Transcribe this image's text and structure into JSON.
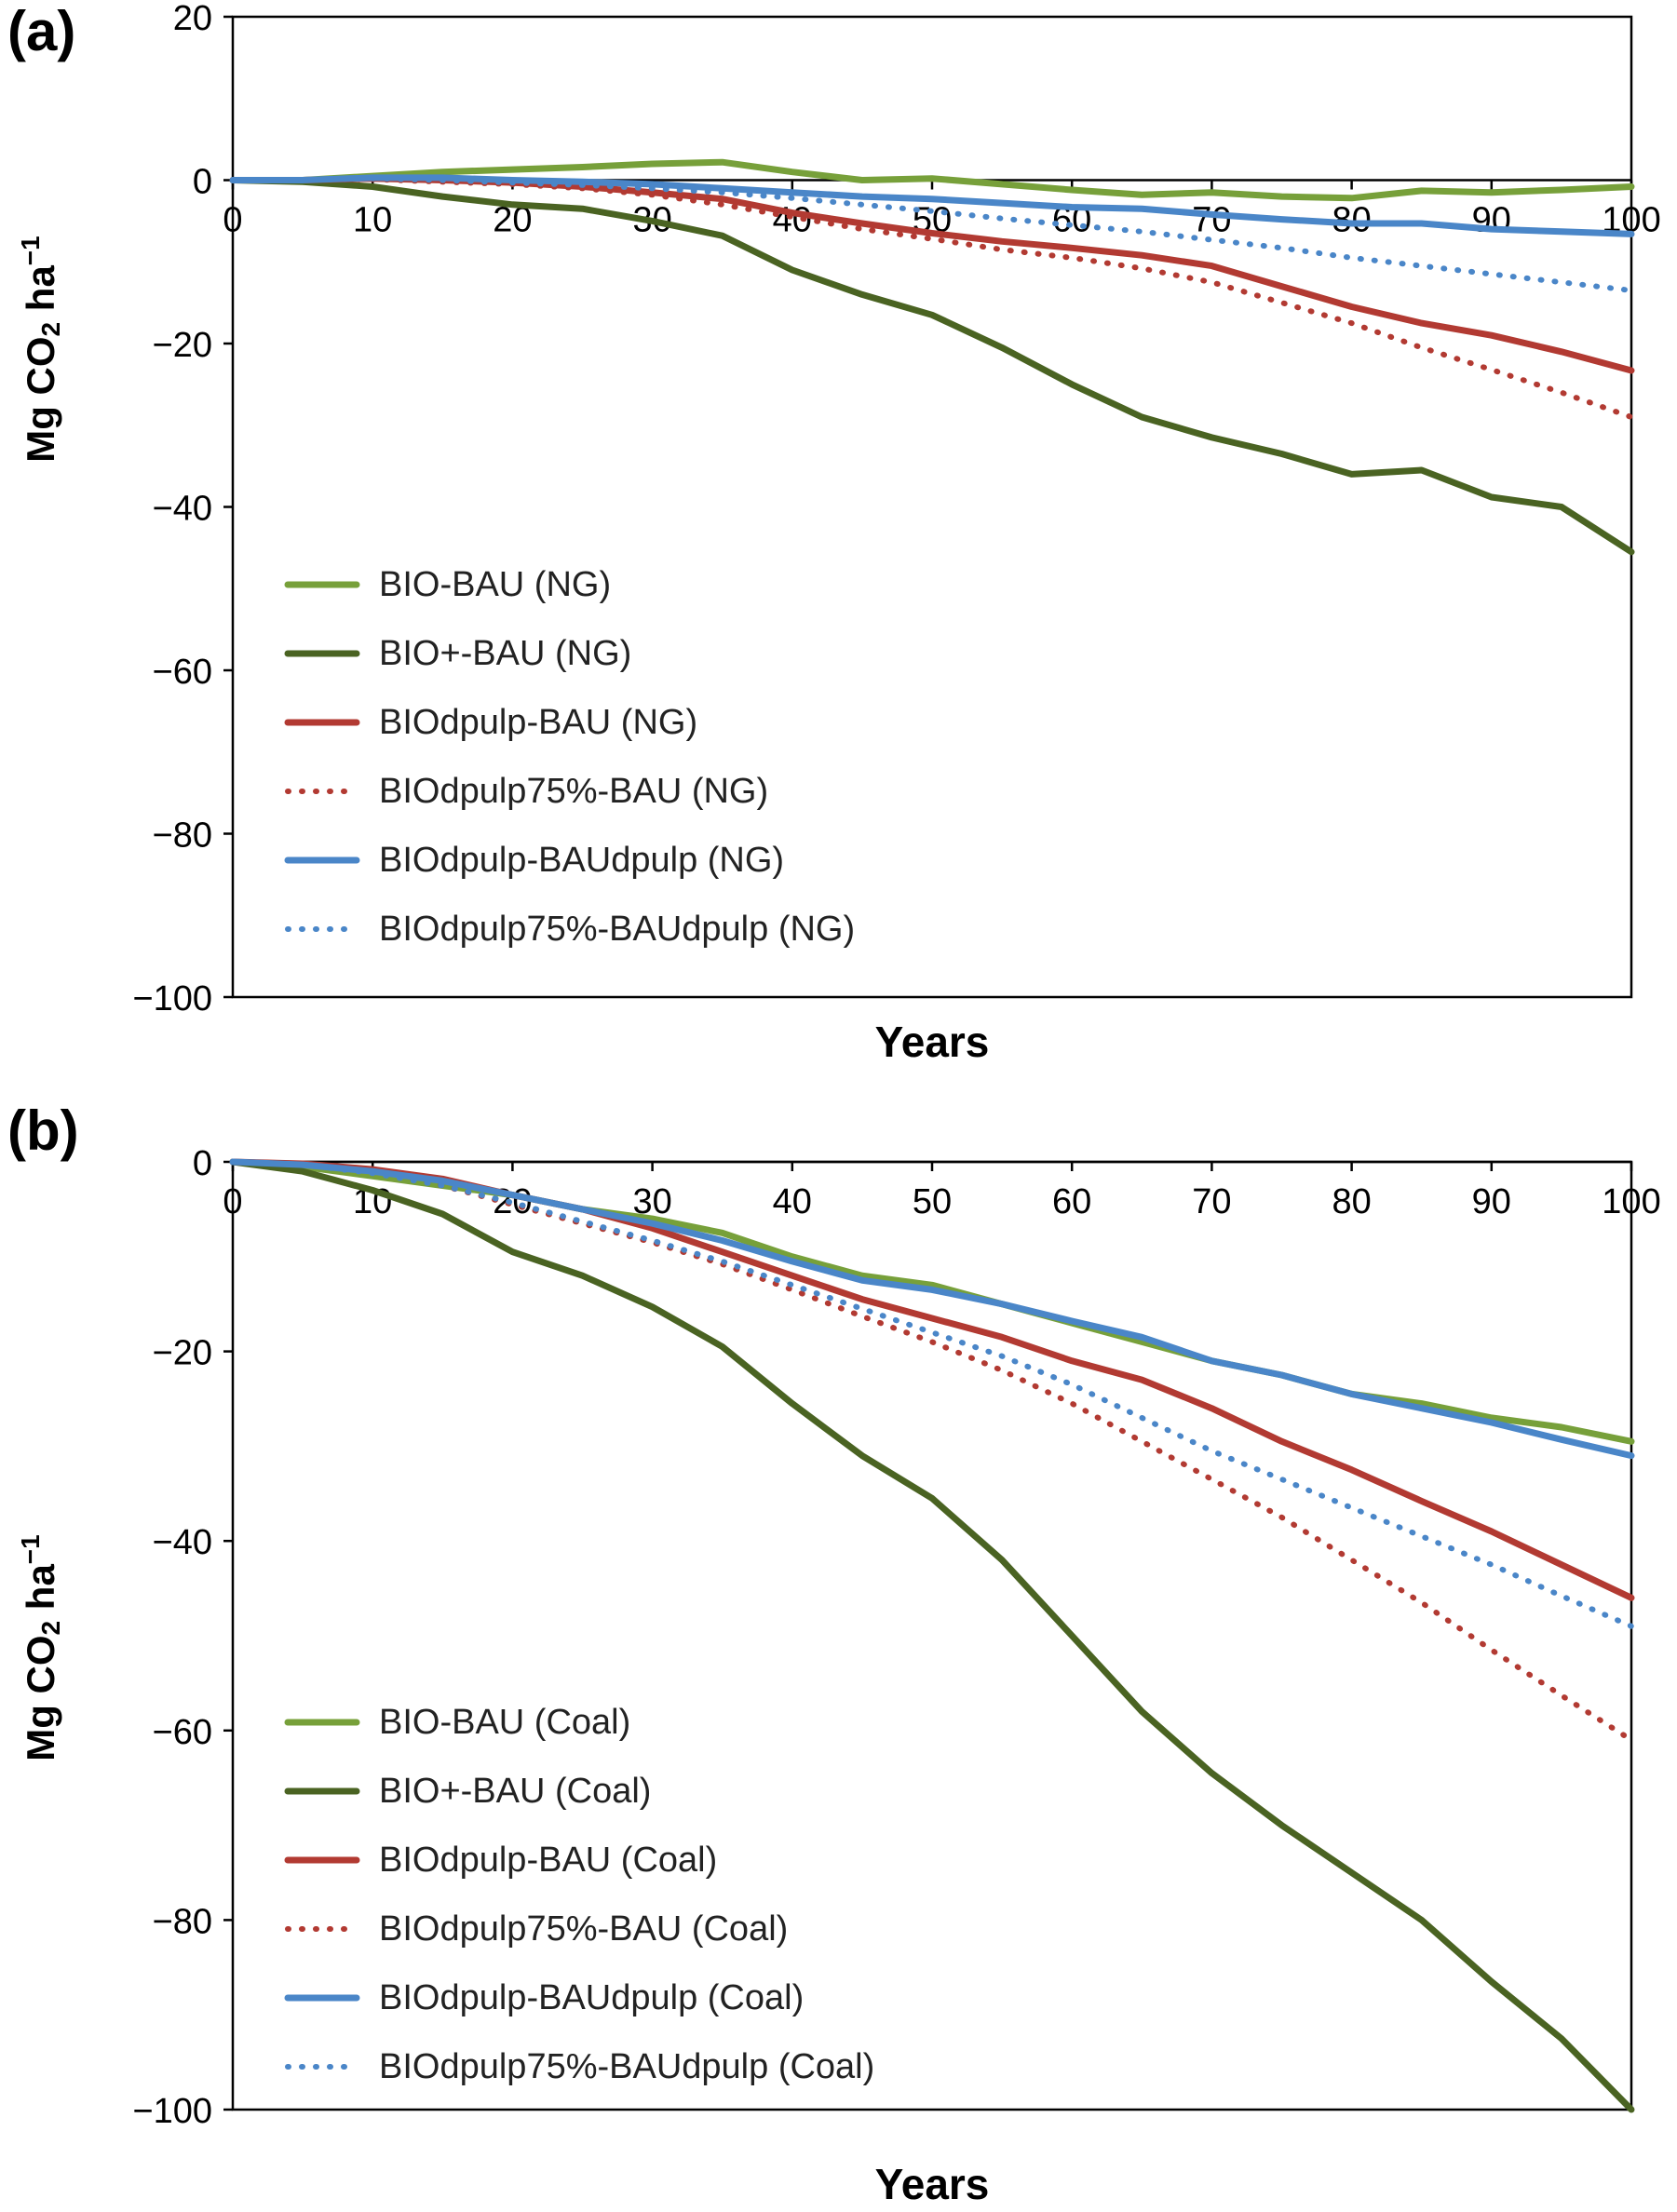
{
  "chart_data": [
    {
      "type": "line",
      "panel_label": "(a)",
      "xlabel": "Years",
      "ylabel_main": "Mg CO",
      "ylabel_sub": "2",
      "ylabel_unit": " ha",
      "ylabel_sup": "−1",
      "xlim": [
        0,
        100
      ],
      "ylim": [
        -100,
        20
      ],
      "x_ticks": [
        0,
        10,
        20,
        30,
        40,
        50,
        60,
        70,
        80,
        90,
        100
      ],
      "y_ticks": [
        20,
        0,
        -20,
        -40,
        -60,
        -80,
        -100
      ],
      "grid": false,
      "legend_position": "lower-left",
      "x": [
        0,
        5,
        10,
        15,
        20,
        25,
        30,
        35,
        40,
        45,
        50,
        55,
        60,
        65,
        70,
        75,
        80,
        85,
        90,
        95,
        100
      ],
      "series": [
        {
          "name": "BIO-BAU (NG)",
          "color": "#77a03a",
          "style": "solid",
          "values": [
            0,
            0,
            0.5,
            1,
            1.3,
            1.6,
            2,
            2.2,
            1,
            0,
            0.2,
            -0.5,
            -1.2,
            -1.8,
            -1.5,
            -2,
            -2.2,
            -1.3,
            -1.5,
            -1.2,
            -0.8
          ]
        },
        {
          "name": "BIO+-BAU (NG)",
          "color": "#4a6322",
          "style": "solid",
          "values": [
            0,
            -0.2,
            -0.8,
            -2,
            -3,
            -3.5,
            -5,
            -6.8,
            -11,
            -14,
            -16.5,
            -20.5,
            -25,
            -29,
            -31.5,
            -33.5,
            -36,
            -35.5,
            -38.8,
            -40,
            -45.5
          ]
        },
        {
          "name": "BIOdpulp-BAU (NG)",
          "color": "#b23a32",
          "style": "solid",
          "values": [
            0,
            0,
            0.2,
            0,
            -0.3,
            -0.8,
            -1.5,
            -2.3,
            -4,
            -5.3,
            -6.5,
            -7.5,
            -8.3,
            -9.2,
            -10.5,
            -13,
            -15.5,
            -17.5,
            -19,
            -21,
            -23.3
          ]
        },
        {
          "name": "BIOdpulp75%-BAU (NG)",
          "color": "#b23a32",
          "style": "dotted",
          "values": [
            0,
            0,
            0.1,
            -0.2,
            -0.5,
            -1,
            -1.8,
            -3,
            -4.5,
            -6,
            -7.2,
            -8.5,
            -9.5,
            -10.8,
            -12.5,
            -15,
            -17.5,
            -20.5,
            -23.2,
            -26,
            -29
          ]
        },
        {
          "name": "BIOdpulp-BAUdpulp (NG)",
          "color": "#4a86c8",
          "style": "solid",
          "values": [
            0,
            0,
            0.3,
            0.3,
            0,
            -0.2,
            -0.5,
            -1,
            -1.5,
            -2,
            -2.3,
            -2.8,
            -3.3,
            -3.5,
            -4.2,
            -4.8,
            -5.3,
            -5.3,
            -6,
            -6.3,
            -6.6
          ]
        },
        {
          "name": "BIOdpulp75%-BAUdpulp (NG)",
          "color": "#4a86c8",
          "style": "dotted",
          "values": [
            0,
            0,
            0.2,
            0,
            -0.3,
            -0.6,
            -1,
            -1.5,
            -2.2,
            -3,
            -3.8,
            -4.7,
            -5.5,
            -6.3,
            -7.3,
            -8.3,
            -9.5,
            -10.5,
            -11.5,
            -12.5,
            -13.5
          ]
        }
      ]
    },
    {
      "type": "line",
      "panel_label": "(b)",
      "xlabel": "Years",
      "ylabel_main": "Mg CO",
      "ylabel_sub": "2",
      "ylabel_unit": " ha",
      "ylabel_sup": "−1",
      "xlim": [
        0,
        100
      ],
      "ylim": [
        -100,
        0
      ],
      "x_ticks": [
        0,
        10,
        20,
        30,
        40,
        50,
        60,
        70,
        80,
        90,
        100
      ],
      "y_ticks": [
        0,
        -20,
        -40,
        -60,
        -80,
        -100
      ],
      "grid": false,
      "legend_position": "lower-left",
      "x": [
        0,
        5,
        10,
        15,
        20,
        25,
        30,
        35,
        40,
        45,
        50,
        55,
        60,
        65,
        70,
        75,
        80,
        85,
        90,
        95,
        100
      ],
      "series": [
        {
          "name": "BIO-BAU (Coal)",
          "color": "#77a03a",
          "style": "solid",
          "values": [
            0,
            -0.5,
            -1.5,
            -2.5,
            -3.5,
            -5,
            -6,
            -7.5,
            -10,
            -12,
            -13,
            -15,
            -17,
            -19,
            -21,
            -22.5,
            -24.5,
            -25.5,
            -27,
            -28,
            -29.5
          ]
        },
        {
          "name": "BIO+-BAU (Coal)",
          "color": "#4a6322",
          "style": "solid",
          "values": [
            0,
            -1,
            -3,
            -5.5,
            -9.5,
            -12,
            -15.3,
            -19.5,
            -25.5,
            -31,
            -35.5,
            -42,
            -50,
            -58,
            -64.5,
            -70,
            -75,
            -80,
            -86.5,
            -92.5,
            -100
          ]
        },
        {
          "name": "BIOdpulp-BAU (Coal)",
          "color": "#b23a32",
          "style": "solid",
          "values": [
            0,
            -0.2,
            -0.8,
            -1.8,
            -3.5,
            -5,
            -7,
            -9.5,
            -12,
            -14.5,
            -16.5,
            -18.5,
            -21,
            -23,
            -26,
            -29.5,
            -32.5,
            -35.8,
            -39,
            -42.5,
            -46
          ]
        },
        {
          "name": "BIOdpulp75%-BAU (Coal)",
          "color": "#b23a32",
          "style": "dotted",
          "values": [
            0,
            -0.3,
            -1,
            -2.5,
            -4.5,
            -6.5,
            -8.5,
            -10.8,
            -13.5,
            -16.3,
            -19,
            -22,
            -25.5,
            -29.5,
            -33.5,
            -37.5,
            -42,
            -46.5,
            -51.5,
            -56.3,
            -61
          ]
        },
        {
          "name": "BIOdpulp-BAUdpulp (Coal)",
          "color": "#4a86c8",
          "style": "solid",
          "values": [
            0,
            -0.3,
            -1,
            -2,
            -3.5,
            -5,
            -6.5,
            -8.3,
            -10.5,
            -12.5,
            -13.5,
            -15,
            -16.8,
            -18.5,
            -21,
            -22.5,
            -24.5,
            -26,
            -27.5,
            -29.3,
            -31
          ]
        },
        {
          "name": "BIOdpulp75%-BAUdpulp (Coal)",
          "color": "#4a86c8",
          "style": "dotted",
          "values": [
            0,
            -0.3,
            -1.2,
            -2.5,
            -4.3,
            -6.3,
            -8.3,
            -10.5,
            -13,
            -15.5,
            -18,
            -20.5,
            -23.5,
            -27,
            -30.5,
            -33.5,
            -36.5,
            -39.5,
            -42.5,
            -45.8,
            -49
          ]
        }
      ]
    }
  ]
}
